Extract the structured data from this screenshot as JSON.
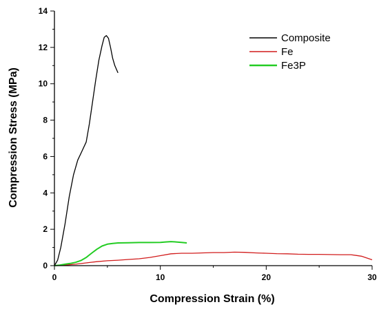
{
  "chart_data": {
    "type": "line",
    "title": "",
    "xlabel": "Compression Strain (%)",
    "ylabel": "Compression Stress (MPa)",
    "xlim": [
      0,
      30
    ],
    "ylim": [
      0,
      14
    ],
    "xticks": [
      0,
      10,
      20,
      30
    ],
    "yticks": [
      0,
      2,
      4,
      6,
      8,
      10,
      12,
      14
    ],
    "grid": false,
    "legend_position": "top-right",
    "series": [
      {
        "name": "Composite",
        "color": "#000000",
        "x": [
          0,
          0.3,
          0.6,
          1.0,
          1.4,
          1.8,
          2.2,
          2.6,
          3.0,
          3.3,
          3.6,
          3.9,
          4.2,
          4.5,
          4.7,
          4.9,
          5.1,
          5.3,
          5.5,
          5.7,
          6.0
        ],
        "y": [
          0,
          0.3,
          1.0,
          2.3,
          3.8,
          5.0,
          5.8,
          6.3,
          6.8,
          7.8,
          9.0,
          10.2,
          11.3,
          12.1,
          12.55,
          12.65,
          12.5,
          12.0,
          11.4,
          11.0,
          10.6
        ]
      },
      {
        "name": "Fe",
        "color": "#d11a1a",
        "x": [
          0,
          1,
          2,
          3,
          4,
          5,
          6,
          7,
          8,
          9,
          10,
          11,
          12,
          13,
          14,
          15,
          16,
          17,
          18,
          19,
          20,
          21,
          22,
          23,
          24,
          25,
          26,
          27,
          28,
          28.5,
          29,
          29.5,
          30
        ],
        "y": [
          0,
          0.03,
          0.08,
          0.15,
          0.22,
          0.27,
          0.3,
          0.34,
          0.38,
          0.45,
          0.55,
          0.65,
          0.68,
          0.68,
          0.7,
          0.72,
          0.72,
          0.74,
          0.73,
          0.7,
          0.68,
          0.66,
          0.65,
          0.63,
          0.62,
          0.62,
          0.61,
          0.6,
          0.6,
          0.56,
          0.52,
          0.42,
          0.32
        ]
      },
      {
        "name": "Fe3P",
        "color": "#22cc22",
        "x": [
          0,
          0.5,
          1.0,
          1.5,
          2.0,
          2.5,
          3.0,
          3.5,
          4.0,
          4.5,
          5.0,
          5.5,
          6.0,
          7.0,
          8.0,
          9.0,
          10.0,
          10.5,
          11.0,
          11.5,
          12.0,
          12.5
        ],
        "y": [
          0,
          0.03,
          0.08,
          0.12,
          0.18,
          0.28,
          0.45,
          0.68,
          0.9,
          1.08,
          1.18,
          1.22,
          1.25,
          1.26,
          1.27,
          1.27,
          1.28,
          1.3,
          1.32,
          1.3,
          1.28,
          1.25
        ]
      }
    ]
  }
}
